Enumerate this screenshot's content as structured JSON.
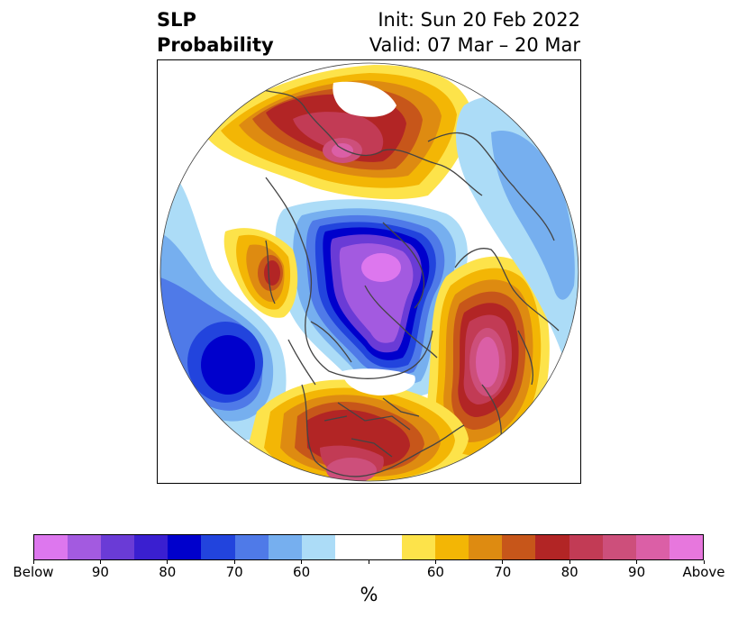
{
  "title": {
    "left_line1": "SLP",
    "left_line2": "Probability",
    "right_line1": "Init: Sun 20 Feb 2022",
    "right_line2": "Valid: 07 Mar – 20 Mar"
  },
  "colorbar": {
    "colors": [
      "#dd77ee",
      "#a35ae0",
      "#6a3bd6",
      "#3a1fd0",
      "#0000cc",
      "#2244dd",
      "#4f7ae8",
      "#76afef",
      "#acdcf7",
      "#ffffff",
      "#ffffff",
      "#fde34a",
      "#f3b605",
      "#de8b11",
      "#c7561a",
      "#b22525",
      "#c23b55",
      "#cd4f7b",
      "#db5fa6",
      "#e777dd"
    ],
    "tick_labels": [
      "Below",
      "90",
      "80",
      "70",
      "60",
      "",
      "60",
      "70",
      "80",
      "90",
      "Above"
    ],
    "unit_label": "%"
  }
}
